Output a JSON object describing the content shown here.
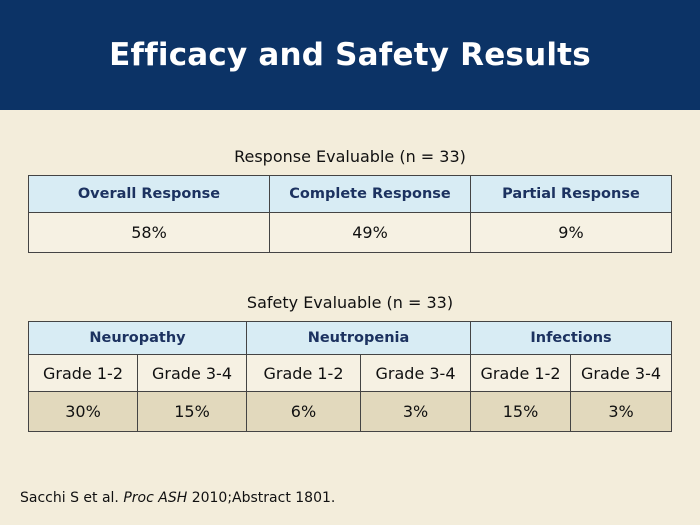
{
  "slide": {
    "title": "Efficacy and Safety Results"
  },
  "response": {
    "caption": "Response Evaluable (n = 33)",
    "headers": [
      "Overall Response",
      "Complete Response",
      "Partial Response"
    ],
    "values": [
      "58%",
      "49%",
      "9%"
    ]
  },
  "safety": {
    "caption": "Safety Evaluable (n = 33)",
    "groups": [
      "Neuropathy",
      "Neutropenia",
      "Infections"
    ],
    "grades": [
      "Grade 1-2",
      "Grade 3-4",
      "Grade 1-2",
      "Grade 3-4",
      "Grade 1-2",
      "Grade 3-4"
    ],
    "values": [
      "30%",
      "15%",
      "6%",
      "3%",
      "15%",
      "3%"
    ]
  },
  "footnote": {
    "authors": "Sacchi S et al.",
    "journal": "Proc ASH",
    "citation": "2010;Abstract 1801."
  }
}
